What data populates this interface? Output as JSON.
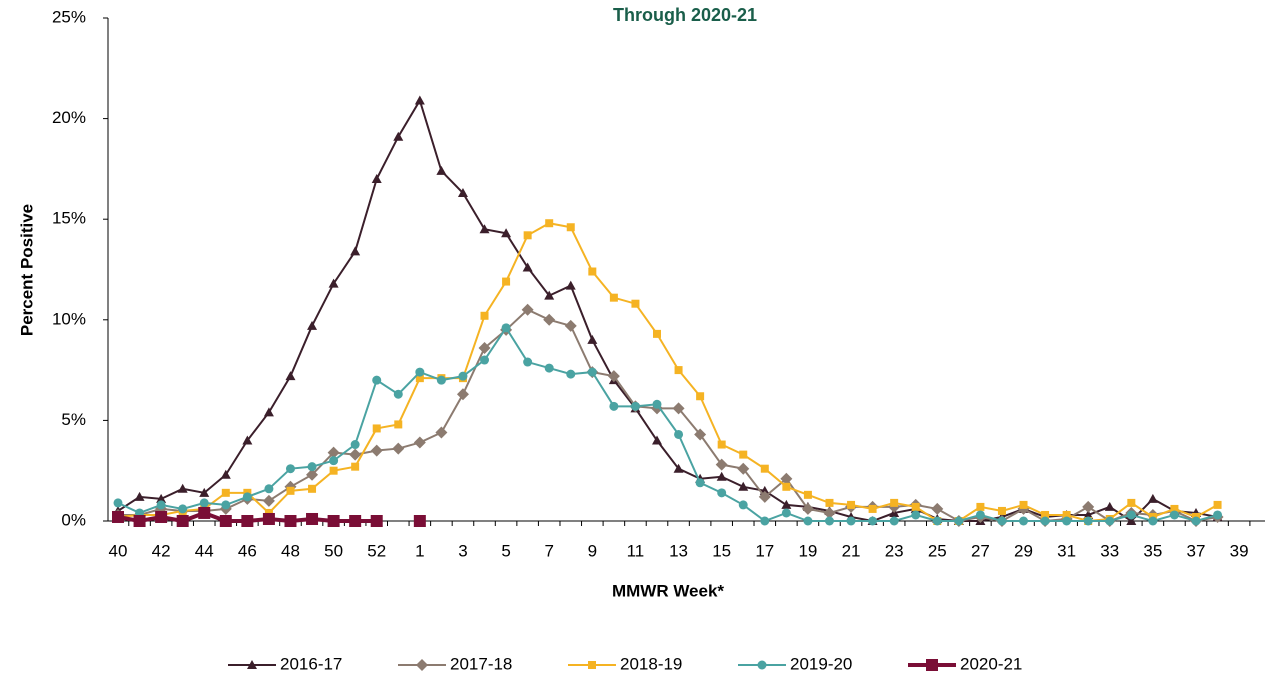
{
  "chart_data": {
    "type": "line",
    "title": "Through 2020-21",
    "x_label": "MMWR Week*",
    "y_label": "Percent Positive",
    "categories": [
      "40",
      null,
      "42",
      null,
      "44",
      null,
      "46",
      null,
      "48",
      null,
      "50",
      null,
      "52",
      null,
      "1",
      null,
      "3",
      null,
      "5",
      null,
      "7",
      null,
      "9",
      null,
      "11",
      null,
      "13",
      null,
      "15",
      null,
      "17",
      null,
      "19",
      null,
      "21",
      null,
      "23",
      null,
      "25",
      null,
      "27",
      null,
      "29",
      null,
      "31",
      null,
      "33",
      null,
      "35",
      null,
      "37",
      null,
      "39"
    ],
    "ylim": [
      0,
      25
    ],
    "yticks": [
      {
        "value": 0,
        "label": "0%"
      },
      {
        "value": 5,
        "label": "5%"
      },
      {
        "value": 10,
        "label": "10%"
      },
      {
        "value": 15,
        "label": "15%"
      },
      {
        "value": 20,
        "label": "20%"
      },
      {
        "value": 25,
        "label": "25%"
      }
    ],
    "grid": false,
    "legend": "bottom",
    "series": [
      {
        "name": "2016-17",
        "color": "#3b1f2b",
        "marker": "triangle",
        "values": [
          0.5,
          1.2,
          1.1,
          1.6,
          1.4,
          2.3,
          4.0,
          5.4,
          7.2,
          9.7,
          11.8,
          13.4,
          17.0,
          19.1,
          20.9,
          17.4,
          16.3,
          14.5,
          14.3,
          12.6,
          11.2,
          11.7,
          9.0,
          7.0,
          5.6,
          4.0,
          2.6,
          2.1,
          2.2,
          1.7,
          1.5,
          0.8,
          0.7,
          0.5,
          0.2,
          0.0,
          0.4,
          0.6,
          0.1,
          0.0,
          0.0,
          0.2,
          0.6,
          0.2,
          0.3,
          0.3,
          0.7,
          0.0,
          1.1,
          0.5,
          0.4,
          0.2,
          null
        ]
      },
      {
        "name": "2017-18",
        "color": "#8c7b70",
        "marker": "diamond",
        "values": [
          0.3,
          0.3,
          0.6,
          0.5,
          0.5,
          0.6,
          1.1,
          1.0,
          1.7,
          2.3,
          3.4,
          3.3,
          3.5,
          3.6,
          3.9,
          4.4,
          6.3,
          8.6,
          9.5,
          10.5,
          10.0,
          9.7,
          7.4,
          7.2,
          5.7,
          5.6,
          5.6,
          4.3,
          2.8,
          2.6,
          1.2,
          2.1,
          0.6,
          0.4,
          0.7,
          0.7,
          0.7,
          0.8,
          0.6,
          0.0,
          0.2,
          0.0,
          0.6,
          0.0,
          0.1,
          0.7,
          0.0,
          0.4,
          0.3,
          0.5,
          0.0,
          0.2,
          null
        ]
      },
      {
        "name": "2018-19",
        "color": "#f5b323",
        "marker": "square",
        "values": [
          0.2,
          0.3,
          0.3,
          0.5,
          0.6,
          1.4,
          1.4,
          0.4,
          1.5,
          1.6,
          2.5,
          2.7,
          4.6,
          4.8,
          7.1,
          7.1,
          7.1,
          10.2,
          11.9,
          14.2,
          14.8,
          14.6,
          12.4,
          11.1,
          10.8,
          9.3,
          7.5,
          6.2,
          3.8,
          3.3,
          2.6,
          1.7,
          1.3,
          0.9,
          0.8,
          0.6,
          0.9,
          0.7,
          0.0,
          0.0,
          0.7,
          0.5,
          0.8,
          0.3,
          0.3,
          0.0,
          0.1,
          0.9,
          0.2,
          0.6,
          0.2,
          0.8,
          null
        ]
      },
      {
        "name": "2019-20",
        "color": "#4aa3a2",
        "marker": "circle",
        "values": [
          0.9,
          0.4,
          0.8,
          0.6,
          0.9,
          0.8,
          1.2,
          1.6,
          2.6,
          2.7,
          3.0,
          3.8,
          7.0,
          6.3,
          7.4,
          7.0,
          7.2,
          8.0,
          9.6,
          7.9,
          7.6,
          7.3,
          7.4,
          5.7,
          5.7,
          5.8,
          4.3,
          1.9,
          1.4,
          0.8,
          0.0,
          0.4,
          0.0,
          0.0,
          0.0,
          0.0,
          0.0,
          0.3,
          0.0,
          0.0,
          0.3,
          0.0,
          0.0,
          0.0,
          0.0,
          0.0,
          0.0,
          0.3,
          0.0,
          0.3,
          0.0,
          0.3,
          null
        ]
      },
      {
        "name": "2020-21",
        "color": "#7a0e36",
        "marker": "big-square",
        "values": [
          0.2,
          0.0,
          0.2,
          0.0,
          0.4,
          0.0,
          0.0,
          0.1,
          0.0,
          0.1,
          0.0,
          0.0,
          0.0,
          null,
          0.0,
          null,
          null,
          null,
          null,
          null,
          null,
          null,
          null,
          null,
          null,
          null,
          null,
          null,
          null,
          null,
          null,
          null,
          null,
          null,
          null,
          null,
          null,
          null,
          null,
          null,
          null,
          null,
          null,
          null,
          null,
          null,
          null,
          null,
          null,
          null,
          null,
          null,
          null
        ]
      }
    ]
  }
}
